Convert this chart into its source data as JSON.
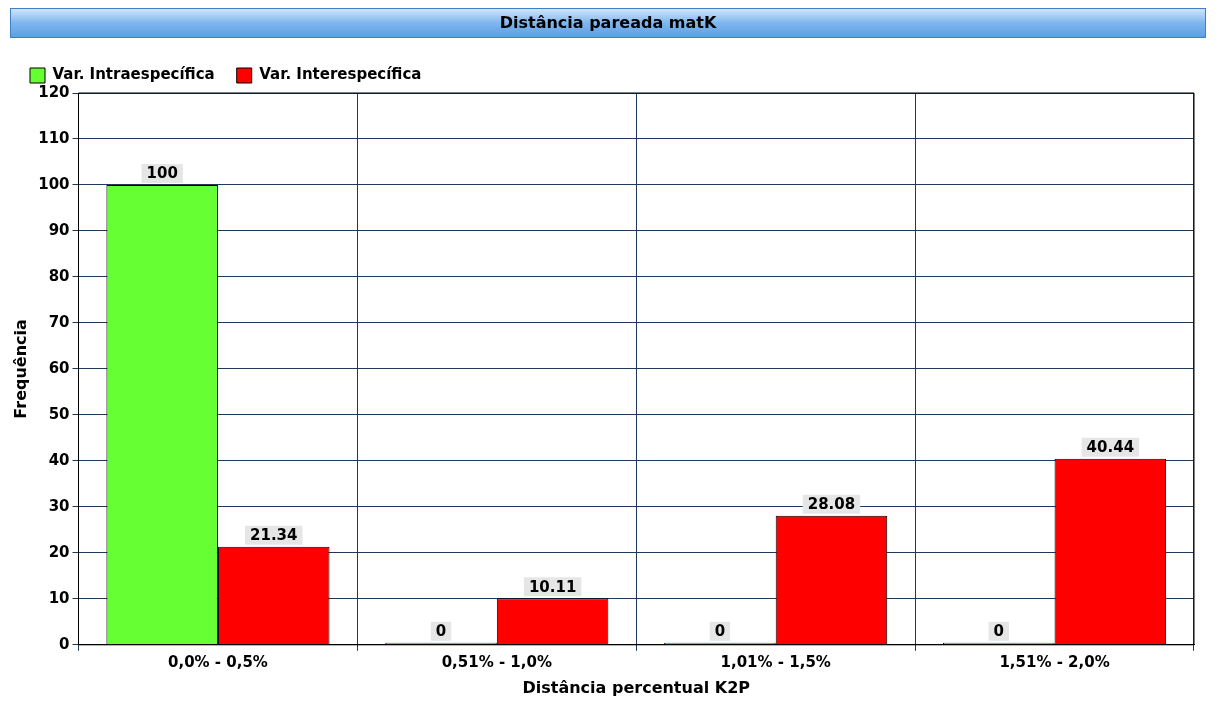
{
  "chart_data": {
    "type": "bar",
    "title": "Distância pareada matK",
    "xlabel": "Distância percentual K2P",
    "ylabel": "Frequência",
    "categories": [
      "0,0% - 0,5%",
      "0,51% - 1,0%",
      "1,01% - 1,5%",
      "1,51% - 2,0%"
    ],
    "series": [
      {
        "name": "Var. Intraespecífica",
        "color": "#66ff33",
        "values": [
          100,
          0,
          0,
          0
        ]
      },
      {
        "name": "Var. Interespecífica",
        "color": "#ff0000",
        "values": [
          21.34,
          10.11,
          28.08,
          40.44
        ]
      }
    ],
    "ylim": [
      0,
      120
    ],
    "yticks": [
      0,
      10,
      20,
      30,
      40,
      50,
      60,
      70,
      80,
      90,
      100,
      110,
      120
    ],
    "grid": true,
    "legend": "top left",
    "data_labels": true
  }
}
